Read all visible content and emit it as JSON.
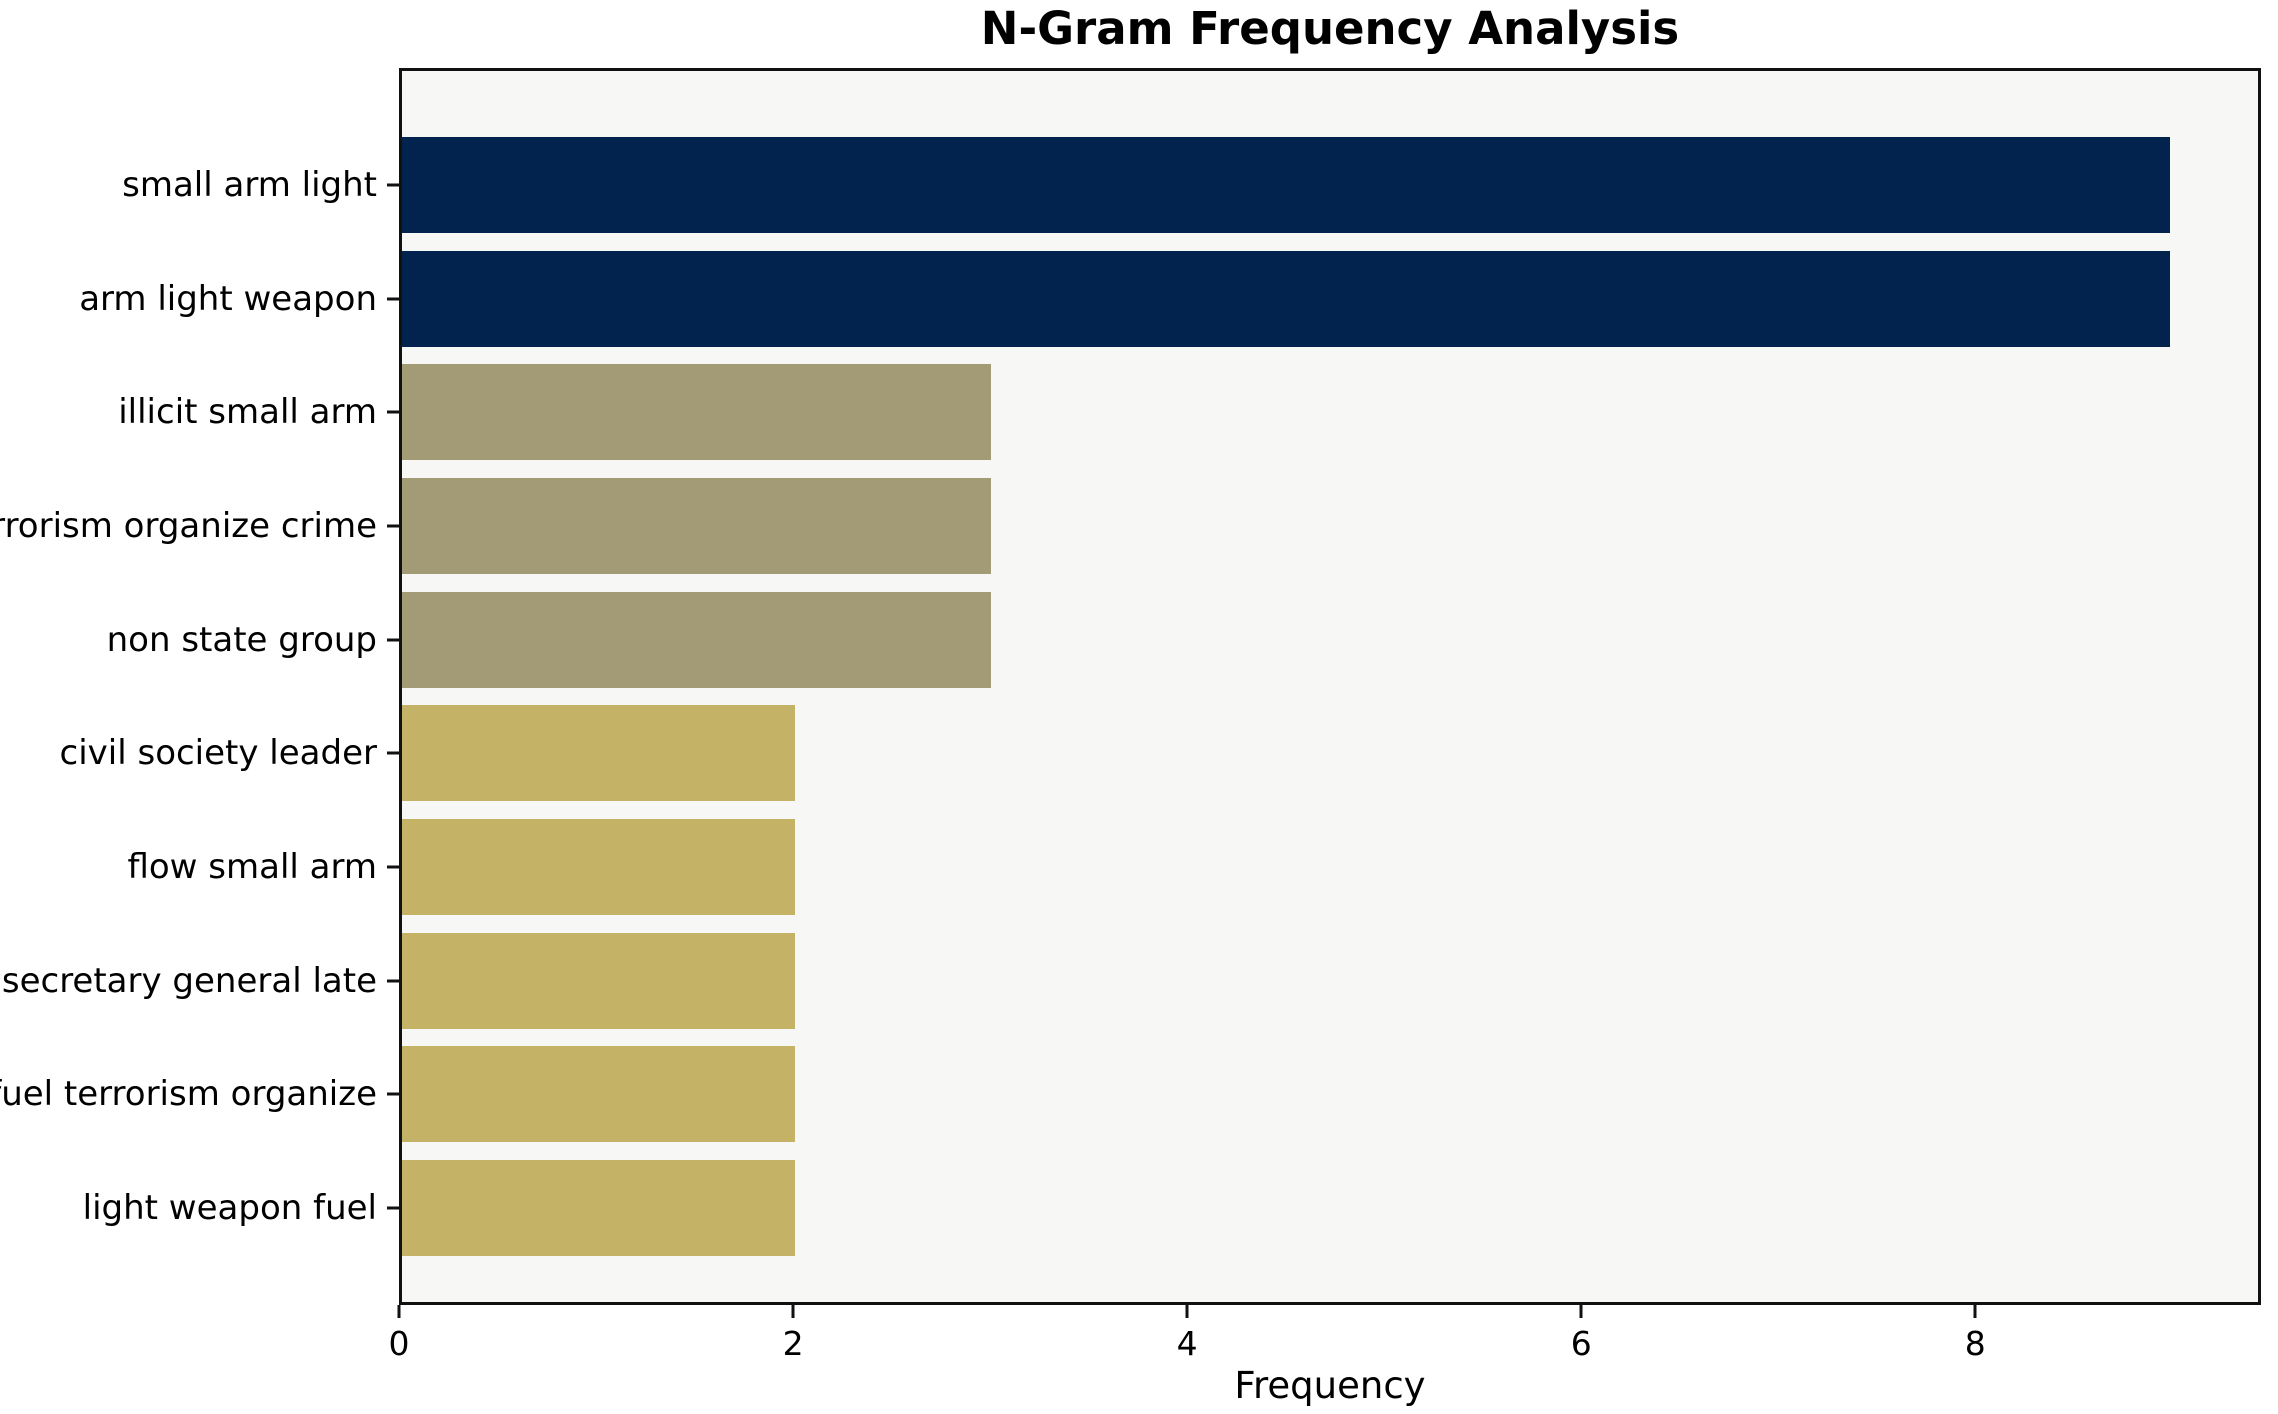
{
  "chart_data": {
    "type": "bar",
    "orientation": "horizontal",
    "title": "N-Gram Frequency Analysis",
    "xlabel": "Frequency",
    "ylabel": "",
    "categories": [
      "small arm light",
      "arm light weapon",
      "illicit small arm",
      "terrorism organize crime",
      "non state group",
      "civil society leader",
      "flow small arm",
      "secretary general late",
      "fuel terrorism organize",
      "light weapon fuel"
    ],
    "values": [
      9,
      9,
      3,
      3,
      3,
      2,
      2,
      2,
      2,
      2
    ],
    "bar_colors": [
      "#02234D",
      "#02234D",
      "#A39B76",
      "#A39B76",
      "#A39B76",
      "#C4B367",
      "#C4B367",
      "#C4B367",
      "#C4B367",
      "#C4B367"
    ],
    "xlim": [
      0,
      9.45
    ],
    "xticks": [
      0,
      2,
      4,
      6,
      8
    ],
    "grid": false,
    "legend": null,
    "colors": {
      "plot_background": "#F7F7F6",
      "figure_background": "#FFFFFF",
      "axis_line": "#111111",
      "text": "#000000",
      "bar_high": "#02234D",
      "bar_mid": "#A39B76",
      "bar_low": "#C4B367"
    }
  }
}
